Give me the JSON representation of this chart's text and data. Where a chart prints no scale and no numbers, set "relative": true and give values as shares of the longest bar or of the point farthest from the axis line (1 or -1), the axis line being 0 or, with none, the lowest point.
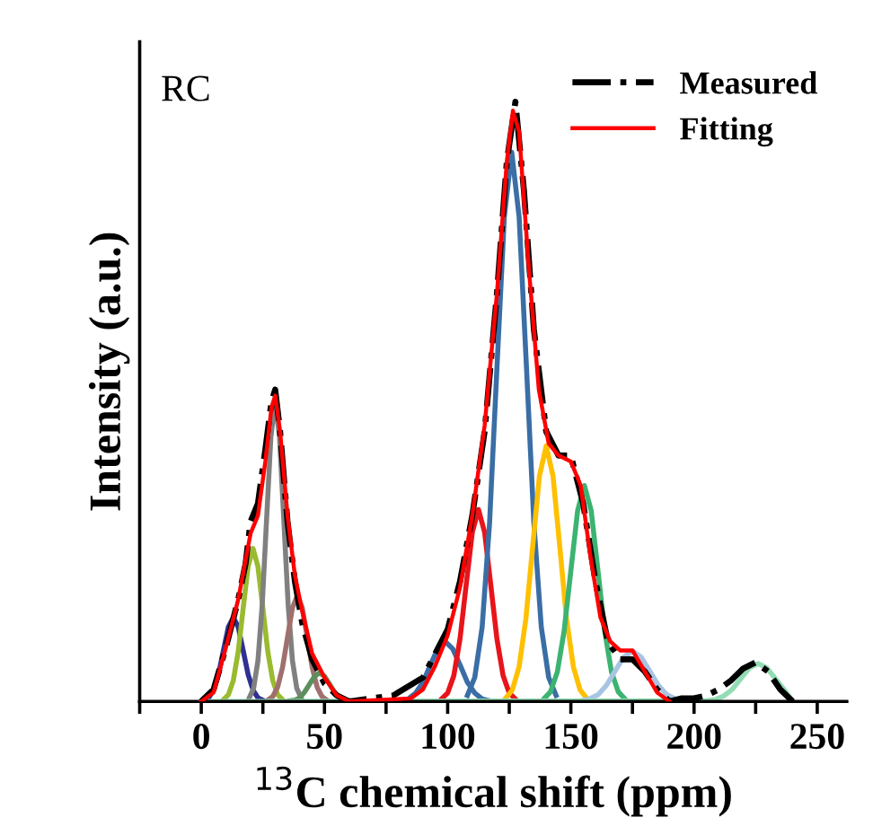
{
  "chart_data": {
    "type": "line",
    "relative": true,
    "xlabel": "$^{13}$C chemical shift (ppm)",
    "ylabel": "Intensity (a.u.)",
    "annotations": [
      "RC"
    ],
    "xlim": [
      -25,
      262
    ],
    "xticks": [
      {
        "value": -25,
        "label": null
      },
      0,
      {
        "value": 25,
        "label": null
      },
      50,
      {
        "value": 75,
        "label": null
      },
      100,
      {
        "value": 125,
        "label": null
      },
      150,
      {
        "value": 175,
        "label": null
      },
      200,
      {
        "value": 225,
        "label": null
      },
      250
    ],
    "legend": "top right",
    "grid": false,
    "series": [
      {
        "color": "#2e3192",
        "x": [
          1,
          3,
          5,
          7,
          9,
          11,
          13,
          15,
          17,
          19,
          21,
          23,
          25
        ],
        "values": [
          0.002,
          0.006,
          0.019,
          0.045,
          0.085,
          0.124,
          0.14,
          0.124,
          0.085,
          0.045,
          0.019,
          0.006,
          0.002
        ]
      },
      {
        "color": "#9aba2f",
        "x": [
          9,
          11,
          13,
          15,
          17,
          19,
          21,
          23,
          25,
          27,
          29,
          31,
          33
        ],
        "values": [
          0.003,
          0.011,
          0.035,
          0.083,
          0.155,
          0.225,
          0.255,
          0.225,
          0.155,
          0.083,
          0.035,
          0.011,
          0.003
        ]
      },
      {
        "color": "#808080",
        "x": [
          19.5,
          21.25,
          23,
          24.75,
          26.5,
          28.25,
          30,
          31.75,
          33.5,
          35.25,
          37,
          38.75,
          40.5
        ],
        "values": [
          0.006,
          0.022,
          0.068,
          0.162,
          0.303,
          0.441,
          0.5,
          0.441,
          0.303,
          0.162,
          0.068,
          0.022,
          0.006
        ]
      },
      {
        "color": "#a0706e",
        "x": [
          27,
          29,
          31,
          33,
          35,
          37,
          39,
          41,
          43,
          45,
          47,
          49,
          51
        ],
        "values": [
          0.002,
          0.008,
          0.024,
          0.057,
          0.107,
          0.156,
          0.177,
          0.156,
          0.107,
          0.057,
          0.024,
          0.008,
          0.002
        ]
      },
      {
        "color": "#5b8f5b",
        "x": [
          36,
          38,
          40,
          42,
          44,
          46,
          48,
          50,
          52,
          54,
          56,
          58,
          60
        ],
        "values": [
          0.001,
          0.002,
          0.006,
          0.016,
          0.029,
          0.042,
          0.048,
          0.042,
          0.029,
          0.016,
          0.006,
          0.002,
          0.001
        ]
      },
      {
        "color": "#3a6ea5",
        "x": [
          81,
          84,
          87,
          90,
          93,
          96,
          99,
          102,
          105,
          108,
          111,
          114,
          117
        ],
        "values": [
          0.001,
          0.004,
          0.014,
          0.032,
          0.061,
          0.088,
          0.1,
          0.088,
          0.061,
          0.032,
          0.014,
          0.004,
          0.001
        ]
      },
      {
        "color": "#e8141b",
        "x": [
          97.5,
          100,
          102.5,
          105,
          107.5,
          110,
          112.5,
          115,
          117.5,
          120,
          122.5,
          125,
          127.5
        ],
        "values": [
          0.004,
          0.014,
          0.043,
          0.104,
          0.194,
          0.282,
          0.32,
          0.282,
          0.194,
          0.104,
          0.043,
          0.014,
          0.004
        ]
      },
      {
        "color": "#3a6ea5",
        "x": [
          108,
          111,
          114,
          117,
          120,
          123,
          126,
          129,
          132,
          135,
          138,
          141,
          144
        ],
        "values": [
          0.01,
          0.04,
          0.124,
          0.297,
          0.556,
          0.808,
          0.916,
          0.808,
          0.556,
          0.297,
          0.124,
          0.04,
          0.01
        ]
      },
      {
        "color": "#ffc000",
        "x": [
          123.5,
          126.25,
          129,
          131.75,
          134.5,
          137.25,
          140,
          142.75,
          145.5,
          148.25,
          151,
          153.75,
          156.5
        ],
        "values": [
          0.005,
          0.019,
          0.058,
          0.138,
          0.258,
          0.376,
          0.426,
          0.376,
          0.258,
          0.138,
          0.058,
          0.019,
          0.005
        ]
      },
      {
        "color": "#3cb371",
        "x": [
          139,
          141.75,
          144.5,
          147.25,
          150,
          152.75,
          155.5,
          158.25,
          161,
          163.75,
          166.5,
          169.25,
          172
        ],
        "values": [
          0.004,
          0.016,
          0.049,
          0.117,
          0.218,
          0.318,
          0.36,
          0.318,
          0.218,
          0.117,
          0.049,
          0.016,
          0.004
        ]
      },
      {
        "color": "#a9c4e3",
        "x": [
          154,
          157.5,
          161,
          164.5,
          168,
          171.5,
          175,
          178.5,
          182,
          185.5,
          189,
          192.5
        ],
        "values": [
          0.001,
          0.004,
          0.011,
          0.027,
          0.051,
          0.074,
          0.084,
          0.074,
          0.051,
          0.027,
          0.011,
          0.004
        ]
      },
      {
        "color": "#93dcb4",
        "x": [
          0,
          205,
          208.5,
          212,
          215.5,
          219,
          222.5,
          226,
          229.5,
          233,
          236.5,
          240
        ],
        "values": [
          0,
          0.001,
          0.003,
          0.009,
          0.02,
          0.038,
          0.056,
          0.063,
          0.056,
          0.038,
          0.02,
          0
        ]
      },
      {
        "name": "Measured",
        "color": "#000000",
        "line_style": "dashdot",
        "x": [
          0,
          5,
          10,
          15,
          18,
          20,
          23,
          26,
          28.5,
          30,
          32,
          35,
          38,
          41,
          45,
          50,
          55,
          60,
          78,
          80,
          90,
          95,
          100,
          105,
          110,
          115,
          120,
          124,
          127.5,
          131,
          135,
          140,
          145,
          150,
          155,
          160,
          165,
          170,
          175,
          180,
          185,
          190,
          195,
          200,
          205,
          210,
          215,
          220,
          225,
          230,
          235,
          240
        ],
        "values": [
          0,
          0.02,
          0.09,
          0.17,
          0.23,
          0.3,
          0.33,
          0.42,
          0.5,
          0.52,
          0.45,
          0.3,
          0.2,
          0.13,
          0.07,
          0.03,
          0.01,
          0,
          0.01,
          0.015,
          0.04,
          0.08,
          0.12,
          0.2,
          0.31,
          0.45,
          0.68,
          0.9,
          1.0,
          0.85,
          0.62,
          0.45,
          0.41,
          0.41,
          0.33,
          0.2,
          0.1,
          0.07,
          0.07,
          0.05,
          0.02,
          0,
          0.005,
          0.005,
          0.01,
          0.02,
          0.035,
          0.055,
          0.065,
          0.05,
          0.02,
          0
        ]
      },
      {
        "name": "Fitting",
        "color": "#ff0000",
        "line_style": "solid",
        "x": [
          0,
          5,
          10,
          15,
          20,
          23,
          26,
          28.5,
          30,
          32,
          35,
          38,
          41,
          45,
          50,
          55,
          60,
          85,
          90,
          95,
          100,
          105,
          110,
          115,
          120,
          124,
          126.5,
          129,
          133,
          137,
          141,
          145,
          150,
          154,
          158,
          162,
          166,
          170,
          175,
          180,
          185,
          190
        ],
        "values": [
          0,
          0.015,
          0.09,
          0.17,
          0.28,
          0.31,
          0.4,
          0.49,
          0.51,
          0.45,
          0.31,
          0.21,
          0.15,
          0.08,
          0.04,
          0.01,
          0,
          0.005,
          0.02,
          0.06,
          0.11,
          0.19,
          0.31,
          0.46,
          0.68,
          0.9,
          0.985,
          0.95,
          0.72,
          0.52,
          0.43,
          0.41,
          0.4,
          0.36,
          0.24,
          0.14,
          0.1,
          0.085,
          0.085,
          0.05,
          0.015,
          0
        ]
      }
    ]
  }
}
